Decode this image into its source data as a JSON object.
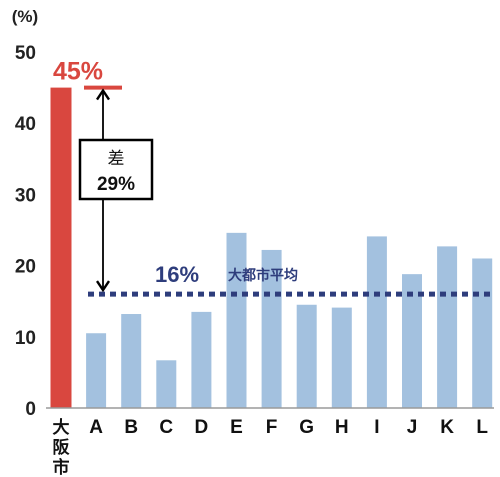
{
  "chart_data": {
    "type": "bar",
    "y_unit": "(%)",
    "ylim": [
      0,
      50
    ],
    "yticks": [
      0,
      10,
      20,
      30,
      40,
      50
    ],
    "categories": [
      "大阪市",
      "A",
      "B",
      "C",
      "D",
      "E",
      "F",
      "G",
      "H",
      "I",
      "J",
      "K",
      "L"
    ],
    "values": [
      45,
      10.5,
      13.2,
      6.7,
      13.5,
      24.6,
      22.2,
      14.5,
      14.1,
      24.1,
      18.8,
      22.7,
      21.0
    ],
    "bar_colors": {
      "highlight": "#d9473f",
      "default": "#a3c1df"
    },
    "highlight_label": "45%",
    "reference_line": {
      "value": 16,
      "label_value": "16%",
      "label_text": "大都市平均",
      "color": "#2e3d7c",
      "style": "dotted"
    },
    "difference_annotation": {
      "line1": "差",
      "line2": "29%"
    },
    "grid": false,
    "legend": "none"
  }
}
